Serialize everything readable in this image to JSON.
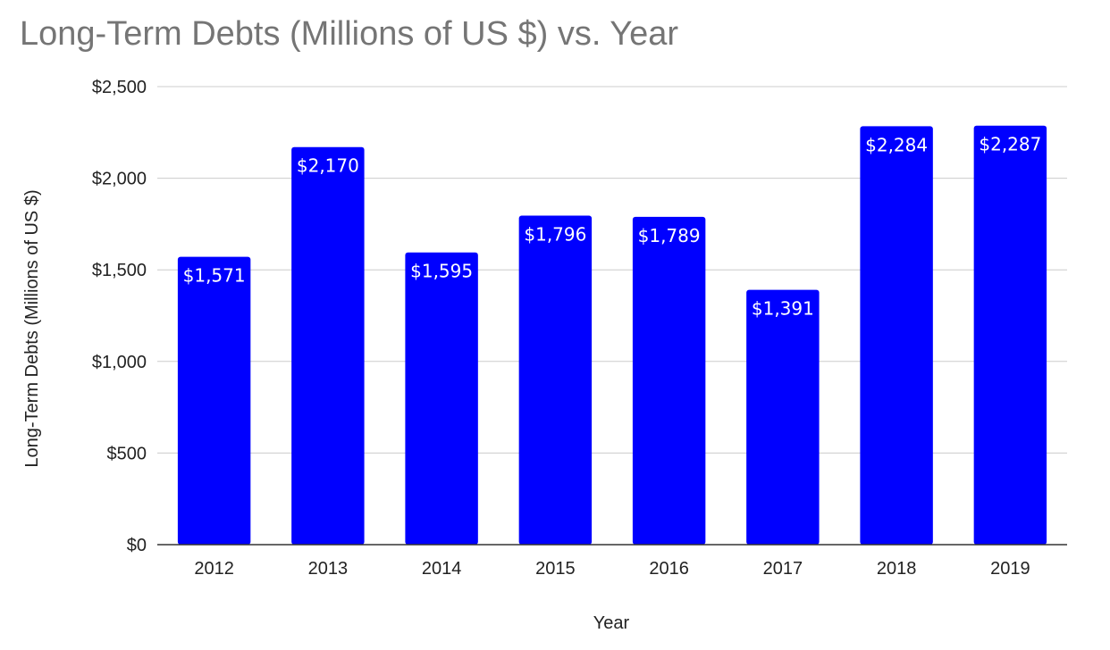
{
  "chart_data": {
    "type": "bar",
    "title": "Long-Term Debts (Millions of US $) vs. Year",
    "xlabel": "Year",
    "ylabel": "Long-Term Debts (Millions of US $)",
    "categories": [
      "2012",
      "2013",
      "2014",
      "2015",
      "2016",
      "2017",
      "2018",
      "2019"
    ],
    "values": [
      1571,
      2170,
      1595,
      1796,
      1789,
      1391,
      2284,
      2287
    ],
    "data_labels": [
      "$1,571",
      "$2,170",
      "$1,595",
      "$1,796",
      "$1,789",
      "$1,391",
      "$2,284",
      "$2,287"
    ],
    "ylim": [
      0,
      2500
    ],
    "yticks": [
      0,
      500,
      1000,
      1500,
      2000,
      2500
    ],
    "ytick_labels": [
      "$0",
      "$500",
      "$1,000",
      "$1,500",
      "$2,000",
      "$2,500"
    ],
    "grid": true,
    "legend": "none",
    "bar_color": "#0000ff"
  }
}
